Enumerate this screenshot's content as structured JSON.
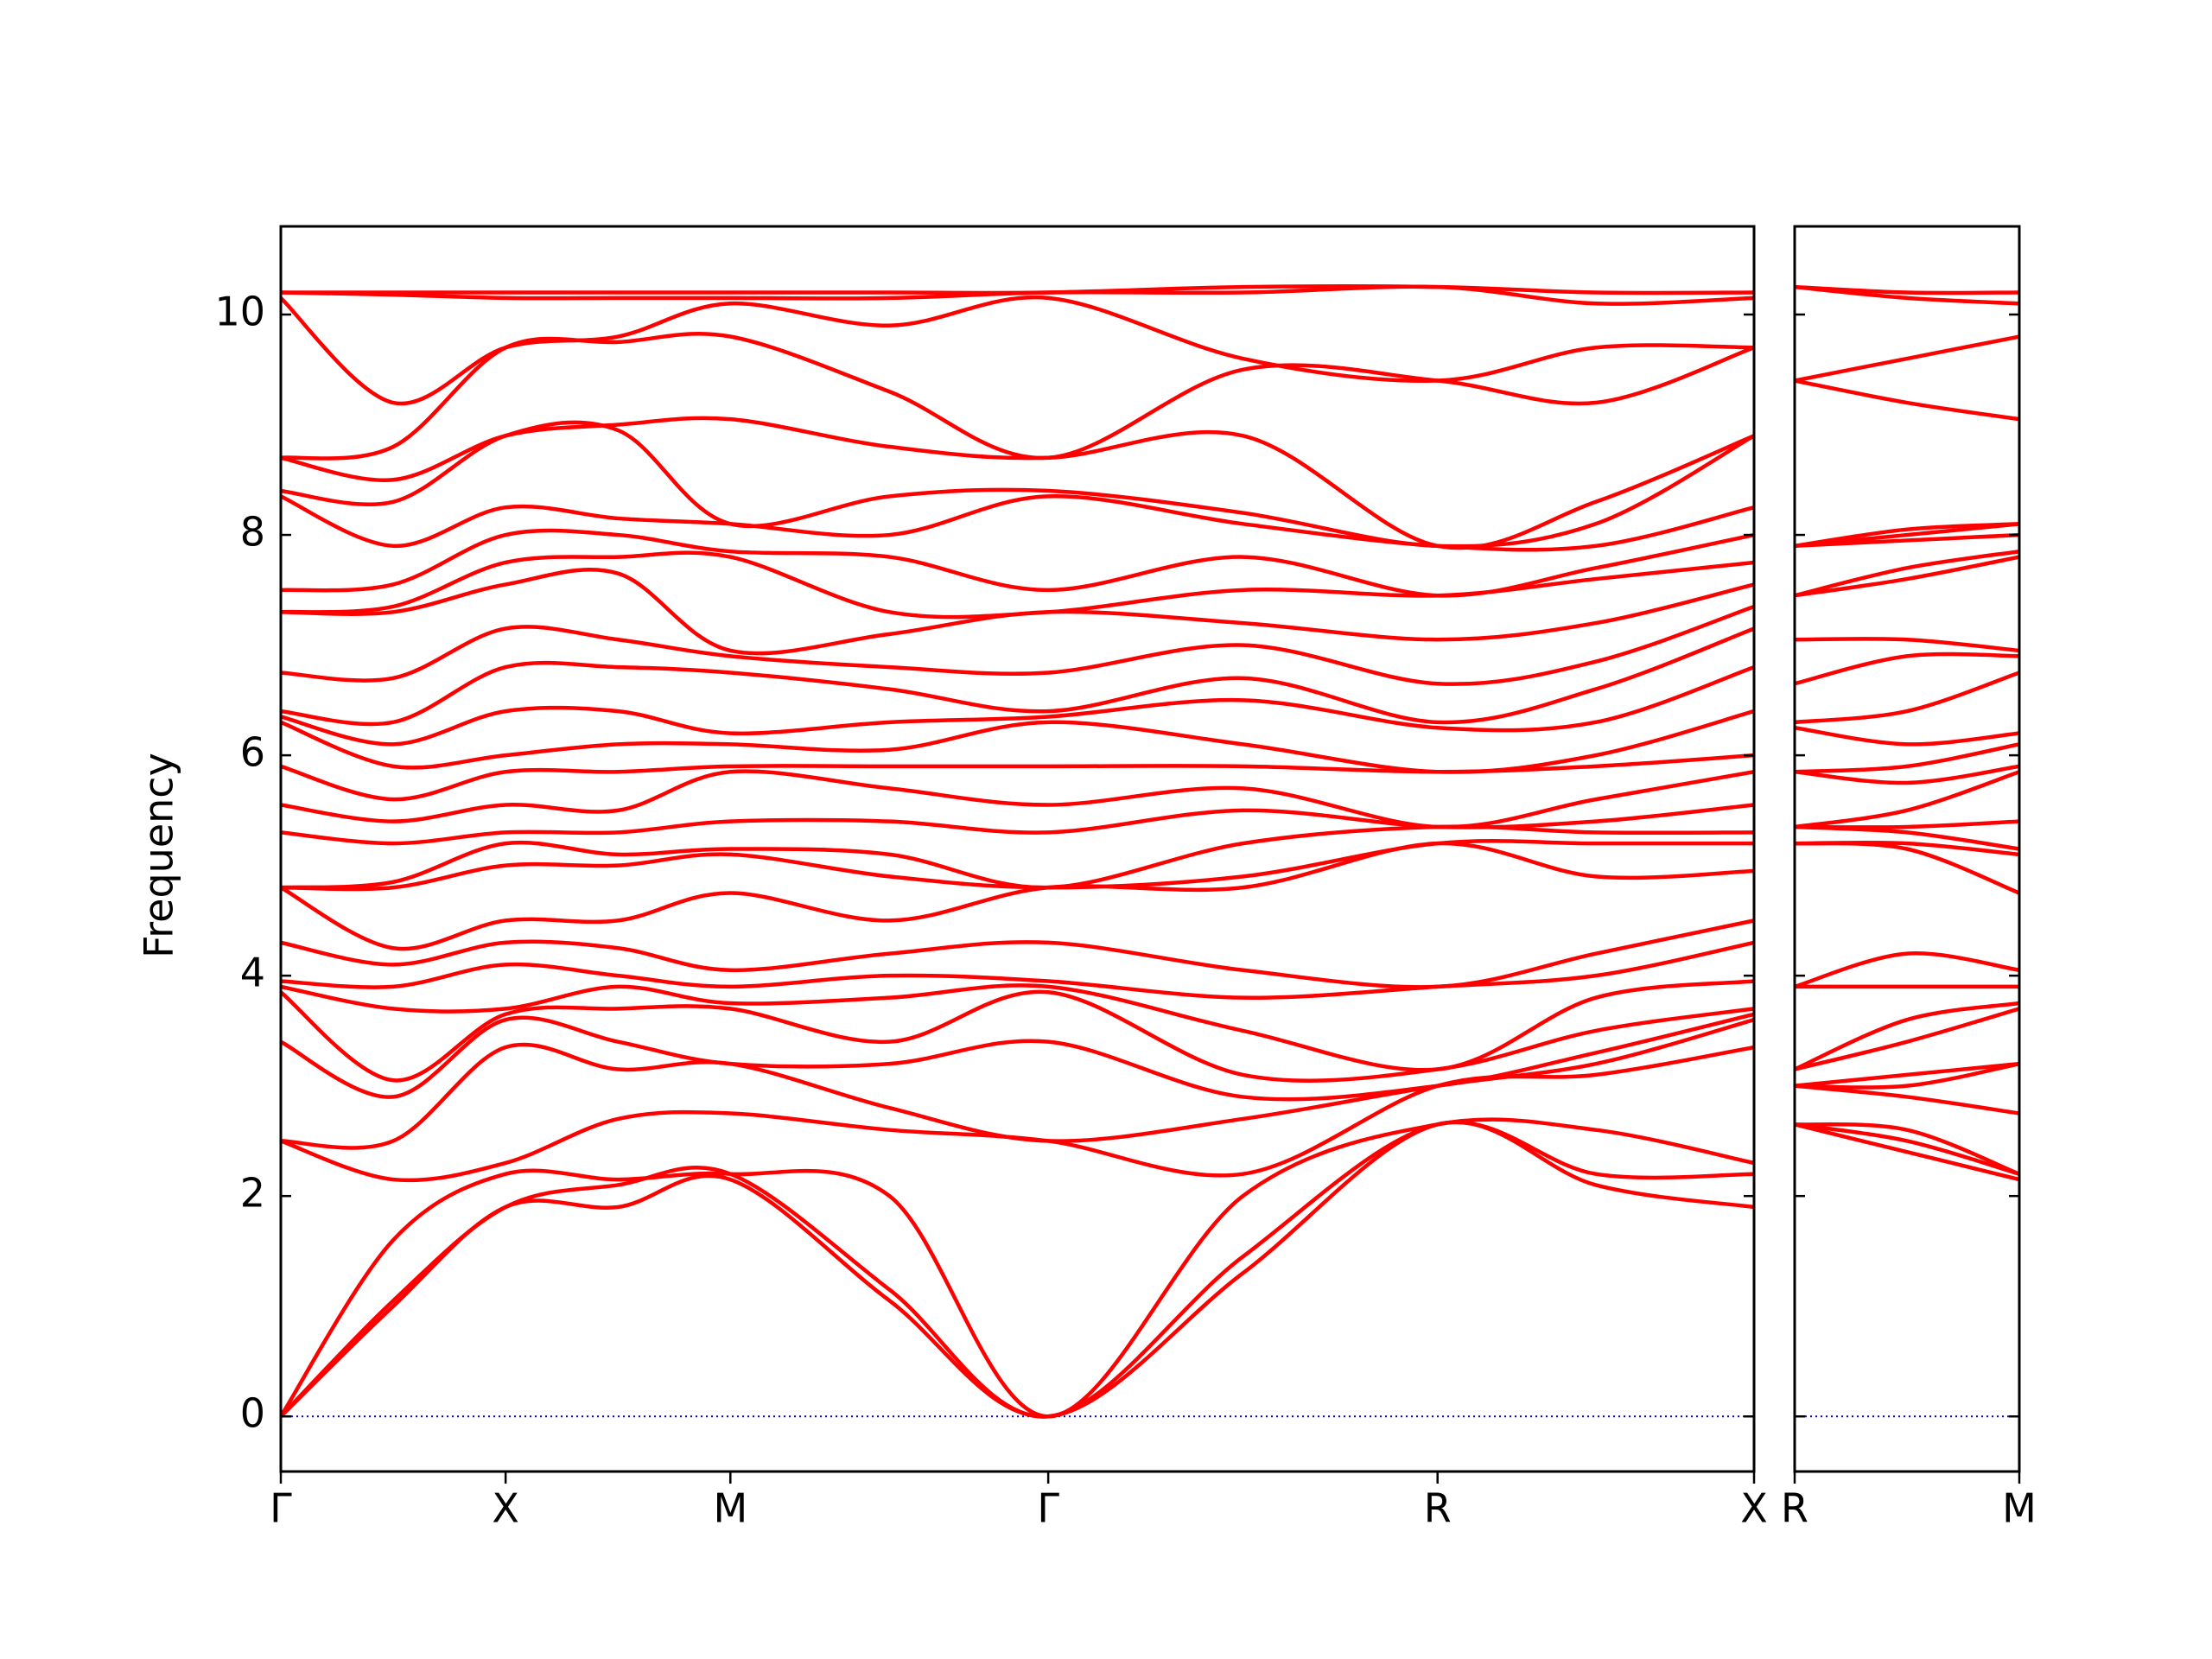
{
  "chart_data": [
    {
      "type": "line",
      "ylabel": "Frequency",
      "color": "#ff0000",
      "x": [
        0,
        0.25,
        0.5,
        0.75,
        1.0,
        1.354,
        1.707,
        2.14,
        2.573,
        2.925,
        3.277
      ],
      "xlim": [
        0,
        3.277
      ],
      "xticks": [
        {
          "value": 0,
          "label": "Γ"
        },
        {
          "value": 0.5,
          "label": "X"
        },
        {
          "value": 1.0,
          "label": "M"
        },
        {
          "value": 1.707,
          "label": "Γ"
        },
        {
          "value": 2.573,
          "label": "R"
        },
        {
          "value": 3.277,
          "label": "X"
        }
      ],
      "ylim": [
        -0.5,
        10.8
      ],
      "yticks": [
        0,
        2,
        4,
        6,
        8,
        10
      ],
      "hline": 0,
      "hline_color": "#0000cc",
      "series": [
        {
          "values": [
            0,
            1.0,
            1.9,
            1.9,
            2.15,
            1.05,
            0,
            1.3,
            2.65,
            2.1,
            1.9
          ]
        },
        {
          "values": [
            0,
            1.05,
            1.9,
            2.1,
            2.2,
            1.15,
            0,
            1.45,
            2.65,
            2.2,
            2.2
          ]
        },
        {
          "values": [
            0,
            1.6,
            2.2,
            2.15,
            2.2,
            2.0,
            0,
            2.0,
            2.65,
            2.6,
            2.3
          ]
        },
        {
          "values": [
            2.5,
            2.15,
            2.3,
            2.7,
            2.75,
            2.6,
            2.5,
            2.2,
            3.0,
            3.1,
            3.35
          ]
        },
        {
          "values": [
            2.5,
            2.5,
            3.35,
            3.15,
            3.2,
            2.8,
            2.5,
            2.7,
            3.0,
            3.2,
            3.6
          ]
        },
        {
          "values": [
            3.4,
            2.9,
            3.6,
            3.4,
            3.2,
            3.2,
            3.4,
            2.9,
            3.0,
            3.3,
            3.65
          ]
        },
        {
          "values": [
            3.85,
            3.05,
            3.65,
            3.7,
            3.7,
            3.4,
            3.85,
            3.1,
            3.15,
            3.5,
            3.7
          ]
        },
        {
          "values": [
            3.9,
            3.7,
            3.7,
            3.9,
            3.75,
            3.8,
            3.9,
            3.5,
            3.15,
            3.8,
            3.95
          ]
        },
        {
          "values": [
            3.95,
            3.9,
            4.1,
            4.0,
            3.9,
            4.0,
            3.95,
            3.8,
            3.9,
            4.0,
            4.3
          ]
        },
        {
          "values": [
            4.3,
            4.1,
            4.3,
            4.25,
            4.05,
            4.2,
            4.3,
            4.05,
            3.9,
            4.2,
            4.5
          ]
        },
        {
          "values": [
            4.8,
            4.25,
            4.5,
            4.5,
            4.75,
            4.5,
            4.8,
            4.8,
            5.2,
            4.9,
            4.95
          ]
        },
        {
          "values": [
            4.8,
            4.8,
            5.0,
            5.0,
            5.1,
            4.9,
            4.8,
            4.9,
            5.2,
            5.2,
            5.2
          ]
        },
        {
          "values": [
            4.8,
            4.85,
            5.2,
            5.1,
            5.15,
            5.1,
            4.8,
            5.2,
            5.35,
            5.3,
            5.3
          ]
        },
        {
          "values": [
            5.3,
            5.2,
            5.3,
            5.3,
            5.4,
            5.4,
            5.3,
            5.5,
            5.35,
            5.4,
            5.55
          ]
        },
        {
          "values": [
            5.55,
            5.4,
            5.55,
            5.5,
            5.85,
            5.7,
            5.55,
            5.7,
            5.35,
            5.6,
            5.85
          ]
        },
        {
          "values": [
            5.9,
            5.6,
            5.85,
            5.85,
            5.9,
            5.9,
            5.9,
            5.9,
            5.85,
            5.9,
            6.0
          ]
        },
        {
          "values": [
            6.3,
            5.9,
            6.0,
            6.1,
            6.1,
            6.05,
            6.3,
            6.1,
            5.85,
            6.0,
            6.4
          ]
        },
        {
          "values": [
            6.35,
            6.1,
            6.4,
            6.4,
            6.2,
            6.3,
            6.35,
            6.5,
            6.25,
            6.3,
            6.8
          ]
        },
        {
          "values": [
            6.4,
            6.3,
            6.8,
            6.8,
            6.75,
            6.6,
            6.4,
            6.7,
            6.3,
            6.6,
            7.15
          ]
        },
        {
          "values": [
            6.75,
            6.7,
            7.15,
            7.05,
            6.9,
            6.8,
            6.75,
            7.0,
            6.65,
            6.85,
            7.35
          ]
        },
        {
          "values": [
            7.3,
            7.3,
            7.55,
            7.65,
            6.95,
            7.1,
            7.3,
            7.2,
            7.05,
            7.2,
            7.55
          ]
        },
        {
          "values": [
            7.3,
            7.35,
            7.75,
            7.8,
            7.8,
            7.3,
            7.3,
            7.5,
            7.45,
            7.6,
            7.75
          ]
        },
        {
          "values": [
            7.5,
            7.55,
            8.0,
            8.0,
            7.85,
            7.8,
            7.5,
            7.8,
            7.45,
            7.7,
            8.0
          ]
        },
        {
          "values": [
            8.35,
            7.9,
            8.25,
            8.15,
            8.1,
            8.0,
            8.35,
            8.1,
            7.9,
            7.9,
            8.25
          ]
        },
        {
          "values": [
            8.4,
            8.3,
            8.9,
            8.95,
            8.1,
            8.35,
            8.4,
            8.2,
            7.9,
            8.1,
            8.9
          ]
        },
        {
          "values": [
            8.7,
            8.5,
            8.9,
            9.0,
            9.05,
            8.8,
            8.7,
            8.9,
            7.9,
            8.3,
            8.9
          ]
        },
        {
          "values": [
            8.7,
            8.8,
            9.7,
            9.75,
            9.8,
            9.3,
            8.7,
            9.5,
            9.4,
            9.2,
            9.7
          ]
        },
        {
          "values": [
            10.15,
            9.2,
            9.7,
            9.8,
            10.1,
            9.9,
            10.15,
            9.6,
            9.4,
            9.7,
            9.7
          ]
        },
        {
          "values": [
            10.2,
            10.18,
            10.15,
            10.15,
            10.15,
            10.15,
            10.2,
            10.2,
            10.25,
            10.1,
            10.15
          ]
        },
        {
          "values": [
            10.2,
            10.2,
            10.2,
            10.2,
            10.2,
            10.2,
            10.2,
            10.25,
            10.25,
            10.2,
            10.2
          ]
        }
      ]
    },
    {
      "type": "line",
      "color": "#ff0000",
      "x": [
        0,
        0.25,
        0.5
      ],
      "xlim": [
        0,
        0.5
      ],
      "xticks": [
        {
          "value": 0,
          "label": "R"
        },
        {
          "value": 0.5,
          "label": "M"
        }
      ],
      "ylim": [
        -0.5,
        10.8
      ],
      "yticks": [
        0,
        2,
        4,
        6,
        8,
        10
      ],
      "hline": 0,
      "hline_color": "#0000cc",
      "series": [
        {
          "values": [
            2.65,
            2.4,
            2.15
          ]
        },
        {
          "values": [
            2.65,
            2.5,
            2.2
          ]
        },
        {
          "values": [
            2.65,
            2.6,
            2.2
          ]
        },
        {
          "values": [
            3.0,
            2.9,
            2.75
          ]
        },
        {
          "values": [
            3.0,
            3.0,
            3.2
          ]
        },
        {
          "values": [
            3.0,
            3.1,
            3.2
          ]
        },
        {
          "values": [
            3.15,
            3.4,
            3.7
          ]
        },
        {
          "values": [
            3.15,
            3.6,
            3.75
          ]
        },
        {
          "values": [
            3.9,
            3.9,
            3.9
          ]
        },
        {
          "values": [
            3.9,
            4.2,
            4.05
          ]
        },
        {
          "values": [
            5.2,
            5.15,
            4.75
          ]
        },
        {
          "values": [
            5.2,
            5.2,
            5.1
          ]
        },
        {
          "values": [
            5.35,
            5.3,
            5.15
          ]
        },
        {
          "values": [
            5.35,
            5.35,
            5.4
          ]
        },
        {
          "values": [
            5.35,
            5.5,
            5.85
          ]
        },
        {
          "values": [
            5.85,
            5.75,
            5.9
          ]
        },
        {
          "values": [
            5.85,
            5.9,
            6.1
          ]
        },
        {
          "values": [
            6.25,
            6.1,
            6.2
          ]
        },
        {
          "values": [
            6.3,
            6.4,
            6.75
          ]
        },
        {
          "values": [
            6.65,
            6.9,
            6.9
          ]
        },
        {
          "values": [
            7.05,
            7.05,
            6.95
          ]
        },
        {
          "values": [
            7.45,
            7.6,
            7.8
          ]
        },
        {
          "values": [
            7.45,
            7.7,
            7.85
          ]
        },
        {
          "values": [
            7.9,
            7.95,
            8.0
          ]
        },
        {
          "values": [
            7.9,
            8.0,
            8.1
          ]
        },
        {
          "values": [
            7.9,
            8.05,
            8.1
          ]
        },
        {
          "values": [
            9.4,
            9.2,
            9.05
          ]
        },
        {
          "values": [
            9.4,
            9.6,
            9.8
          ]
        },
        {
          "values": [
            10.25,
            10.15,
            10.1
          ]
        },
        {
          "values": [
            10.25,
            10.2,
            10.2
          ]
        }
      ]
    }
  ]
}
